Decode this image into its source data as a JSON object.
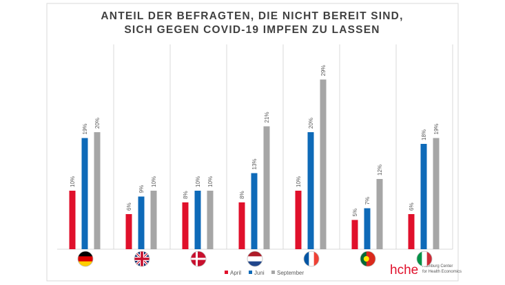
{
  "chart_data": {
    "type": "bar",
    "title": "ANTEIL DER BEFRAGTEN, DIE NICHT BEREIT SIND, SICH GEGEN COVID-19 IMPFEN ZU LASSEN",
    "categories": [
      null,
      null,
      null,
      null,
      null,
      null,
      null
    ],
    "series": [
      {
        "name": "April",
        "color": "#e0102b",
        "values": [
          10,
          6,
          8,
          8,
          10,
          5,
          6
        ],
        "value_labels": [
          "10%",
          "6%",
          "8%",
          "8%",
          "10%",
          "5%",
          "6%"
        ]
      },
      {
        "name": "Juni",
        "color": "#0e6ab8",
        "values": [
          19,
          9,
          10,
          13,
          20,
          7,
          18
        ],
        "value_labels": [
          "19%",
          "9%",
          "10%",
          "13%",
          "20%",
          "7%",
          "18%"
        ]
      },
      {
        "name": "September",
        "color": "#a6a6a6",
        "values": [
          20,
          10,
          10,
          21,
          29,
          12,
          19
        ],
        "value_labels": [
          "20%",
          "10%",
          "10%",
          "21%",
          "29%",
          "12%",
          "19%"
        ]
      }
    ],
    "ylim": [
      0,
      35
    ],
    "legend": "bottom"
  },
  "logo": {
    "text": "hche",
    "lines": [
      "Hamburg Center",
      "for Health Economics"
    ]
  }
}
